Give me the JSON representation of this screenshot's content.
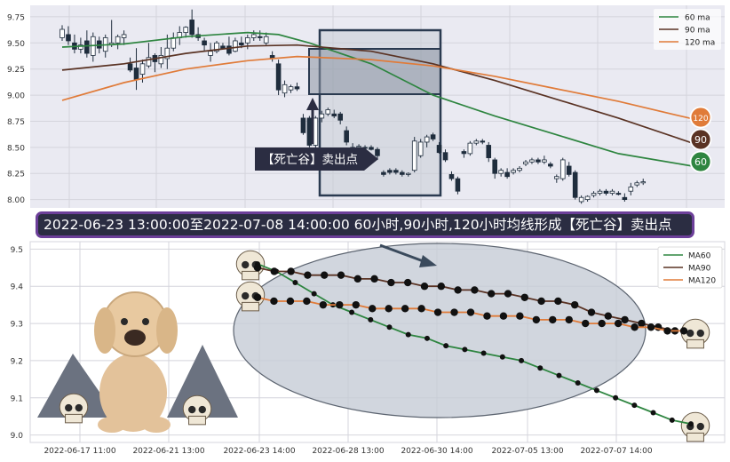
{
  "colors": {
    "ma60": "#2e8540",
    "ma90": "#5a3324",
    "ma120": "#e07b39",
    "up": "#ffffff",
    "down": "#1f2d3d",
    "panel": "#eaeaf2",
    "grid": "#d4d4dc",
    "zone": "#c6ccd6",
    "zone_border": "#2a3a50",
    "banner_bg": "#2b2d42",
    "banner_border": "#6c3f99"
  },
  "chart_data": [
    {
      "type": "candlestick",
      "yticks": [
        "8.00",
        "8.25",
        "8.50",
        "8.75",
        "9.00",
        "9.25",
        "9.50",
        "9.75"
      ],
      "ylim": [
        7.92,
        9.86
      ],
      "legend": [
        {
          "name": "60 ma"
        },
        {
          "name": "90 ma"
        },
        {
          "name": "120 ma"
        }
      ],
      "legend_position": "top-right",
      "end_markers": [
        "120",
        "90",
        "60"
      ],
      "arrow_label": "【死亡谷】卖出点",
      "candles": [
        {
          "o": 9.55,
          "h": 9.67,
          "l": 9.52,
          "c": 9.63
        },
        {
          "o": 9.58,
          "h": 9.66,
          "l": 9.48,
          "c": 9.52
        },
        {
          "o": 9.5,
          "h": 9.58,
          "l": 9.4,
          "c": 9.44
        },
        {
          "o": 9.44,
          "h": 9.55,
          "l": 9.4,
          "c": 9.48
        },
        {
          "o": 9.52,
          "h": 9.62,
          "l": 9.36,
          "c": 9.4
        },
        {
          "o": 9.38,
          "h": 9.6,
          "l": 9.32,
          "c": 9.56
        },
        {
          "o": 9.52,
          "h": 9.56,
          "l": 9.4,
          "c": 9.45
        },
        {
          "o": 9.42,
          "h": 9.58,
          "l": 9.36,
          "c": 9.55
        },
        {
          "o": 9.48,
          "h": 9.72,
          "l": 9.46,
          "c": 9.5
        },
        {
          "o": 9.5,
          "h": 9.58,
          "l": 9.44,
          "c": 9.56
        },
        {
          "o": 9.55,
          "h": 9.62,
          "l": 9.48,
          "c": 9.58
        },
        {
          "o": 9.3,
          "h": 9.36,
          "l": 9.22,
          "c": 9.24
        },
        {
          "o": 9.26,
          "h": 9.45,
          "l": 9.05,
          "c": 9.15
        },
        {
          "o": 9.2,
          "h": 9.34,
          "l": 9.12,
          "c": 9.3
        },
        {
          "o": 9.28,
          "h": 9.5,
          "l": 9.26,
          "c": 9.36
        },
        {
          "o": 9.38,
          "h": 9.4,
          "l": 9.22,
          "c": 9.32
        },
        {
          "o": 9.3,
          "h": 9.46,
          "l": 9.26,
          "c": 9.38
        },
        {
          "o": 9.35,
          "h": 9.58,
          "l": 9.25,
          "c": 9.45
        },
        {
          "o": 9.45,
          "h": 9.6,
          "l": 9.42,
          "c": 9.55
        },
        {
          "o": 9.55,
          "h": 9.66,
          "l": 9.48,
          "c": 9.6
        },
        {
          "o": 9.6,
          "h": 9.66,
          "l": 9.55,
          "c": 9.65
        },
        {
          "o": 9.72,
          "h": 9.82,
          "l": 9.55,
          "c": 9.58
        },
        {
          "o": 9.58,
          "h": 9.65,
          "l": 9.52,
          "c": 9.55
        },
        {
          "o": 9.52,
          "h": 9.55,
          "l": 9.42,
          "c": 9.48
        },
        {
          "o": 9.38,
          "h": 9.5,
          "l": 9.32,
          "c": 9.42
        },
        {
          "o": 9.42,
          "h": 9.52,
          "l": 9.4,
          "c": 9.5
        },
        {
          "o": 9.47,
          "h": 9.5,
          "l": 9.44,
          "c": 9.45
        },
        {
          "o": 9.47,
          "h": 9.56,
          "l": 9.38,
          "c": 9.4
        },
        {
          "o": 9.42,
          "h": 9.55,
          "l": 9.41,
          "c": 9.52
        },
        {
          "o": 9.5,
          "h": 9.56,
          "l": 9.45,
          "c": 9.48
        },
        {
          "o": 9.5,
          "h": 9.58,
          "l": 9.44,
          "c": 9.55
        },
        {
          "o": 9.55,
          "h": 9.62,
          "l": 9.52,
          "c": 9.58
        },
        {
          "o": 9.56,
          "h": 9.62,
          "l": 9.52,
          "c": 9.55
        },
        {
          "o": 9.5,
          "h": 9.6,
          "l": 9.48,
          "c": 9.56
        },
        {
          "o": 9.38,
          "h": 9.42,
          "l": 9.32,
          "c": 9.35
        },
        {
          "o": 9.3,
          "h": 9.34,
          "l": 9.0,
          "c": 9.05
        },
        {
          "o": 9.02,
          "h": 9.14,
          "l": 8.98,
          "c": 9.1
        },
        {
          "o": 9.05,
          "h": 9.1,
          "l": 9.02,
          "c": 9.08
        },
        {
          "o": 9.08,
          "h": 9.12,
          "l": 9.04,
          "c": 9.06
        },
        {
          "o": 8.78,
          "h": 8.82,
          "l": 8.62,
          "c": 8.64
        },
        {
          "o": 8.78,
          "h": 8.8,
          "l": 8.5,
          "c": 8.52
        },
        {
          "o": 8.52,
          "h": 8.8,
          "l": 8.48,
          "c": 8.78
        },
        {
          "o": 8.78,
          "h": 8.85,
          "l": 8.74,
          "c": 8.82
        },
        {
          "o": 8.82,
          "h": 8.88,
          "l": 8.8,
          "c": 8.86
        },
        {
          "o": 8.82,
          "h": 8.86,
          "l": 8.78,
          "c": 8.8
        },
        {
          "o": 8.82,
          "h": 8.84,
          "l": 8.72,
          "c": 8.76
        },
        {
          "o": 8.66,
          "h": 8.7,
          "l": 8.52,
          "c": 8.55
        },
        {
          "o": 8.5,
          "h": 8.54,
          "l": 8.44,
          "c": 8.48
        },
        {
          "o": 8.5,
          "h": 8.53,
          "l": 8.48,
          "c": 8.51
        },
        {
          "o": 8.5,
          "h": 8.52,
          "l": 8.48,
          "c": 8.49
        },
        {
          "o": 8.5,
          "h": 8.52,
          "l": 8.47,
          "c": 8.48
        },
        {
          "o": 8.48,
          "h": 8.5,
          "l": 8.38,
          "c": 8.42
        },
        {
          "o": 8.26,
          "h": 8.28,
          "l": 8.22,
          "c": 8.24
        },
        {
          "o": 8.28,
          "h": 8.3,
          "l": 8.24,
          "c": 8.26
        },
        {
          "o": 8.28,
          "h": 8.3,
          "l": 8.24,
          "c": 8.26
        },
        {
          "o": 8.26,
          "h": 8.28,
          "l": 8.22,
          "c": 8.24
        },
        {
          "o": 8.24,
          "h": 8.26,
          "l": 8.22,
          "c": 8.25
        },
        {
          "o": 8.28,
          "h": 8.6,
          "l": 8.26,
          "c": 8.56
        },
        {
          "o": 8.42,
          "h": 8.58,
          "l": 8.4,
          "c": 8.55
        },
        {
          "o": 8.55,
          "h": 8.62,
          "l": 8.5,
          "c": 8.6
        },
        {
          "o": 8.62,
          "h": 8.64,
          "l": 8.56,
          "c": 8.58
        },
        {
          "o": 8.52,
          "h": 8.55,
          "l": 8.44,
          "c": 8.45
        },
        {
          "o": 8.45,
          "h": 8.48,
          "l": 8.36,
          "c": 8.38
        },
        {
          "o": 8.24,
          "h": 8.27,
          "l": 8.18,
          "c": 8.2
        },
        {
          "o": 8.2,
          "h": 8.22,
          "l": 8.05,
          "c": 8.08
        },
        {
          "o": 8.46,
          "h": 8.48,
          "l": 8.4,
          "c": 8.44
        },
        {
          "o": 8.44,
          "h": 8.56,
          "l": 8.42,
          "c": 8.54
        },
        {
          "o": 8.54,
          "h": 8.58,
          "l": 8.52,
          "c": 8.56
        },
        {
          "o": 8.56,
          "h": 8.58,
          "l": 8.53,
          "c": 8.55
        },
        {
          "o": 8.52,
          "h": 8.55,
          "l": 8.36,
          "c": 8.4
        },
        {
          "o": 8.38,
          "h": 8.4,
          "l": 8.2,
          "c": 8.25
        },
        {
          "o": 8.25,
          "h": 8.3,
          "l": 8.22,
          "c": 8.28
        },
        {
          "o": 8.26,
          "h": 8.3,
          "l": 8.2,
          "c": 8.22
        },
        {
          "o": 8.26,
          "h": 8.3,
          "l": 8.24,
          "c": 8.28
        },
        {
          "o": 8.28,
          "h": 8.32,
          "l": 8.26,
          "c": 8.3
        },
        {
          "o": 8.34,
          "h": 8.38,
          "l": 8.32,
          "c": 8.36
        },
        {
          "o": 8.36,
          "h": 8.4,
          "l": 8.34,
          "c": 8.38
        },
        {
          "o": 8.38,
          "h": 8.4,
          "l": 8.34,
          "c": 8.36
        },
        {
          "o": 8.36,
          "h": 8.42,
          "l": 8.34,
          "c": 8.38
        },
        {
          "o": 8.34,
          "h": 8.36,
          "l": 8.3,
          "c": 8.32
        },
        {
          "o": 8.2,
          "h": 8.24,
          "l": 8.16,
          "c": 8.22
        },
        {
          "o": 8.2,
          "h": 8.4,
          "l": 8.18,
          "c": 8.38
        },
        {
          "o": 8.32,
          "h": 8.36,
          "l": 8.22,
          "c": 8.24
        },
        {
          "o": 8.26,
          "h": 8.28,
          "l": 8.0,
          "c": 8.02
        },
        {
          "o": 7.98,
          "h": 8.04,
          "l": 7.96,
          "c": 8.02
        },
        {
          "o": 8.0,
          "h": 8.04,
          "l": 7.98,
          "c": 8.03
        },
        {
          "o": 8.04,
          "h": 8.08,
          "l": 8.02,
          "c": 8.06
        },
        {
          "o": 8.06,
          "h": 8.1,
          "l": 8.04,
          "c": 8.08
        },
        {
          "o": 8.08,
          "h": 8.1,
          "l": 8.04,
          "c": 8.06
        },
        {
          "o": 8.06,
          "h": 8.1,
          "l": 8.04,
          "c": 8.08
        },
        {
          "o": 8.06,
          "h": 8.08,
          "l": 8.04,
          "c": 8.05
        },
        {
          "o": 8.02,
          "h": 8.06,
          "l": 7.98,
          "c": 8.0
        },
        {
          "o": 8.08,
          "h": 8.16,
          "l": 8.04,
          "c": 8.12
        },
        {
          "o": 8.14,
          "h": 8.18,
          "l": 8.12,
          "c": 8.16
        },
        {
          "o": 8.16,
          "h": 8.2,
          "l": 8.14,
          "c": 8.17
        }
      ],
      "series": [
        {
          "name": "60 ma",
          "points": [
            [
              0,
              9.46
            ],
            [
              10,
              9.49
            ],
            [
              20,
              9.56
            ],
            [
              30,
              9.6
            ],
            [
              35,
              9.58
            ],
            [
              40,
              9.5
            ],
            [
              50,
              9.3
            ],
            [
              60,
              9.0
            ],
            [
              70,
              8.8
            ],
            [
              80,
              8.62
            ],
            [
              90,
              8.44
            ],
            [
              100,
              8.34
            ],
            [
              103,
              8.31
            ]
          ]
        },
        {
          "name": "90 ma",
          "points": [
            [
              0,
              9.24
            ],
            [
              10,
              9.3
            ],
            [
              20,
              9.4
            ],
            [
              30,
              9.47
            ],
            [
              38,
              9.48
            ],
            [
              50,
              9.42
            ],
            [
              60,
              9.3
            ],
            [
              70,
              9.14
            ],
            [
              80,
              8.96
            ],
            [
              90,
              8.78
            ],
            [
              100,
              8.58
            ],
            [
              103,
              8.52
            ]
          ]
        },
        {
          "name": "120 ma",
          "points": [
            [
              0,
              8.95
            ],
            [
              10,
              9.12
            ],
            [
              20,
              9.25
            ],
            [
              30,
              9.33
            ],
            [
              38,
              9.37
            ],
            [
              50,
              9.34
            ],
            [
              60,
              9.28
            ],
            [
              70,
              9.18
            ],
            [
              80,
              9.06
            ],
            [
              90,
              8.94
            ],
            [
              100,
              8.8
            ],
            [
              103,
              8.76
            ]
          ]
        }
      ]
    },
    {
      "type": "line",
      "yticks": [
        "9.0",
        "9.1",
        "9.2",
        "9.3",
        "9.4",
        "9.5"
      ],
      "ylim": [
        8.98,
        9.52
      ],
      "xticks": [
        "2022-06-17 11:00",
        "2022-06-21 13:00",
        "2022-06-23 14:00",
        "2022-06-28 13:00",
        "2022-06-30 14:00",
        "2022-07-05 13:00",
        "2022-07-07 14:00"
      ],
      "legend": [
        {
          "name": "MA60"
        },
        {
          "name": "MA90"
        },
        {
          "name": "MA120"
        }
      ],
      "legend_position": "top-right",
      "series": [
        {
          "name": "MA60",
          "values": [
            9.46,
            9.44,
            9.41,
            9.38,
            9.35,
            9.33,
            9.31,
            9.29,
            9.27,
            9.26,
            9.24,
            9.23,
            9.22,
            9.21,
            9.2,
            9.18,
            9.16,
            9.14,
            9.12,
            9.1,
            9.08,
            9.06,
            9.04,
            9.03
          ]
        },
        {
          "name": "MA90",
          "values": [
            9.45,
            9.44,
            9.44,
            9.43,
            9.43,
            9.43,
            9.42,
            9.42,
            9.41,
            9.41,
            9.4,
            9.4,
            9.39,
            9.39,
            9.38,
            9.38,
            9.37,
            9.36,
            9.36,
            9.35,
            9.33,
            9.32,
            9.31,
            9.3,
            9.29,
            9.28
          ]
        },
        {
          "name": "MA120",
          "values": [
            9.37,
            9.36,
            9.36,
            9.36,
            9.35,
            9.35,
            9.35,
            9.34,
            9.34,
            9.34,
            9.34,
            9.33,
            9.33,
            9.33,
            9.32,
            9.32,
            9.32,
            9.31,
            9.31,
            9.31,
            9.3,
            9.3,
            9.3,
            9.29,
            9.29,
            9.28,
            9.28
          ]
        }
      ]
    }
  ],
  "banner": {
    "text": "2022-06-23 13:00:00至2022-07-08 14:00:00 60小时,90小时,120小时均线形成【死亡谷】卖出点"
  }
}
